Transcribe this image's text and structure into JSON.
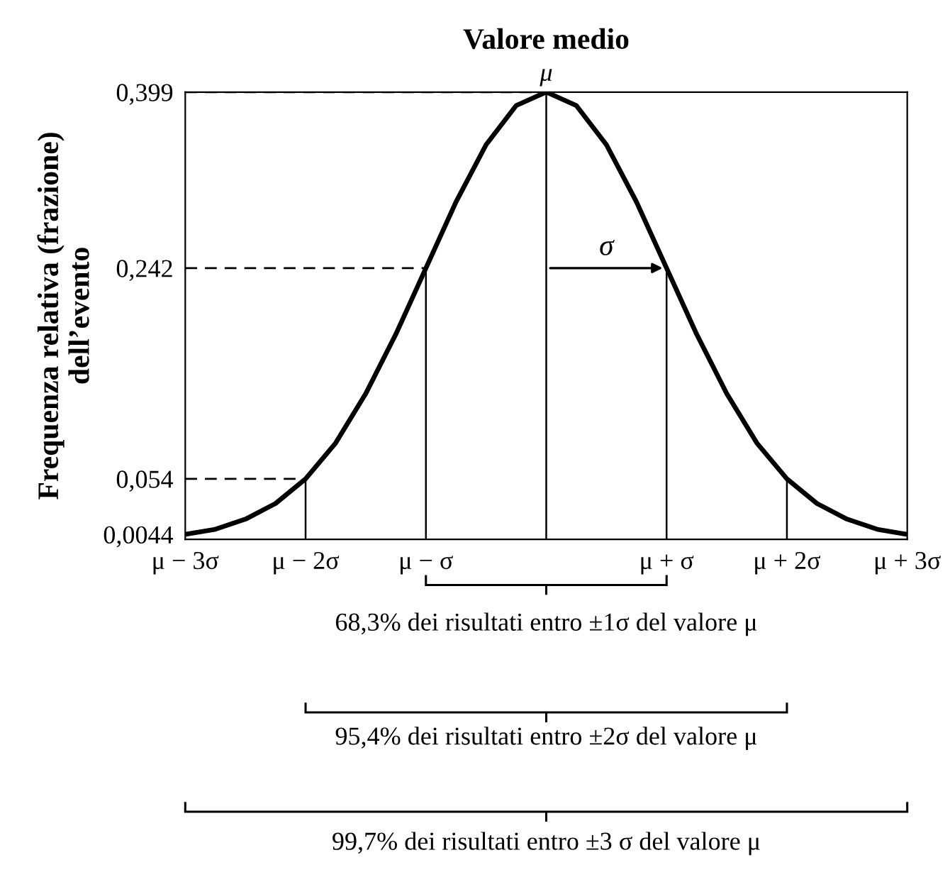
{
  "chart_data": {
    "type": "line",
    "title": "Valore medio",
    "ylabel": "Frequenza relativa (frazione)\ndell’evento",
    "x": [
      -3,
      -2.75,
      -2.5,
      -2.25,
      -2,
      -1.75,
      -1.5,
      -1.25,
      -1,
      -0.75,
      -0.5,
      -0.25,
      0,
      0.25,
      0.5,
      0.75,
      1,
      1.25,
      1.5,
      1.75,
      2,
      2.25,
      2.5,
      2.75,
      3
    ],
    "series": [
      {
        "color": "#000000",
        "values": [
          0.0044,
          0.009,
          0.018,
          0.032,
          0.054,
          0.086,
          0.13,
          0.183,
          0.242,
          0.301,
          0.352,
          0.387,
          0.399,
          0.387,
          0.352,
          0.301,
          0.242,
          0.183,
          0.13,
          0.086,
          0.054,
          0.032,
          0.018,
          0.009,
          0.0044
        ]
      }
    ],
    "xlim": [
      -3,
      3
    ],
    "ylim": [
      0,
      0.399
    ],
    "xticks": [
      {
        "value": -3,
        "label": "μ − 3σ"
      },
      {
        "value": -2,
        "label": "μ − 2σ"
      },
      {
        "value": -1,
        "label": "μ − σ"
      },
      {
        "value": 0,
        "label": null
      },
      {
        "value": 1,
        "label": "μ + σ"
      },
      {
        "value": 2,
        "label": "μ + 2σ"
      },
      {
        "value": 3,
        "label": "μ + 3σ"
      }
    ],
    "yticks": [
      {
        "value": 0.0044,
        "label": "0,0044"
      },
      {
        "value": 0.054,
        "label": "0,054"
      },
      {
        "value": 0.242,
        "label": "0,242"
      },
      {
        "value": 0.399,
        "label": "0,399"
      }
    ],
    "ref_lines": [
      {
        "axis": "y",
        "value": 0.399,
        "line_style": "dashed",
        "color": "#000000"
      },
      {
        "axis": "y",
        "value": 0.242,
        "label": "σ",
        "line_style": "dashed",
        "color": "#000000"
      },
      {
        "axis": "y",
        "value": 0.054,
        "line_style": "dashed",
        "color": "#000000"
      },
      {
        "axis": "x",
        "value": -2,
        "line_style": "solid",
        "color": "#000000"
      },
      {
        "axis": "x",
        "value": -1,
        "line_style": "solid",
        "color": "#000000"
      },
      {
        "axis": "x",
        "value": 0,
        "line_style": "solid",
        "color": "#000000"
      },
      {
        "axis": "x",
        "value": 1,
        "line_style": "solid",
        "color": "#000000"
      },
      {
        "axis": "x",
        "value": 2,
        "line_style": "solid",
        "color": "#000000"
      }
    ],
    "annotations": [
      {
        "text": "μ",
        "x": 0,
        "y": 0.399
      },
      "68,3% dei risultati entro ±1σ del valore μ",
      "95,4% dei risultati entro ±2σ del valore μ",
      "99,7% dei risultati entro ±3 σ del valore μ"
    ],
    "grid": false,
    "marker": "none",
    "line_style": "solid"
  }
}
